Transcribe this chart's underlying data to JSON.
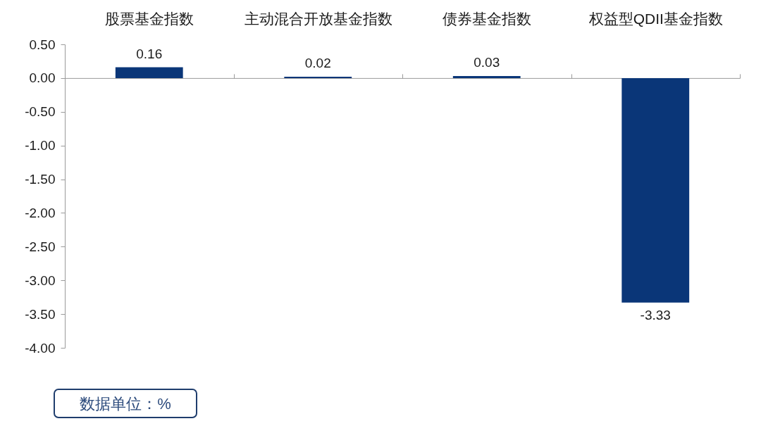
{
  "chart_data": {
    "type": "bar",
    "categories": [
      "股票基金指数",
      "主动混合开放基金指数",
      "债券基金指数",
      "权益型QDII基金指数"
    ],
    "values": [
      0.16,
      0.02,
      0.03,
      -3.33
    ],
    "color": "#0a3678",
    "data_labels": true,
    "ylim": [
      -4,
      0.5
    ],
    "yticks": [
      {
        "value": 0.5,
        "label": "0.50"
      },
      {
        "value": 0,
        "label": "0.00"
      },
      {
        "value": -0.5,
        "label": "-0.50"
      },
      {
        "value": -1,
        "label": "-1.00"
      },
      {
        "value": -1.5,
        "label": "-1.50"
      },
      {
        "value": -2,
        "label": "-2.00"
      },
      {
        "value": -2.5,
        "label": "-2.50"
      },
      {
        "value": -3,
        "label": "-3.00"
      },
      {
        "value": -3.5,
        "label": "-3.50"
      },
      {
        "value": -4,
        "label": "-4.00"
      }
    ],
    "annotations": [
      "数据单位：%"
    ]
  }
}
